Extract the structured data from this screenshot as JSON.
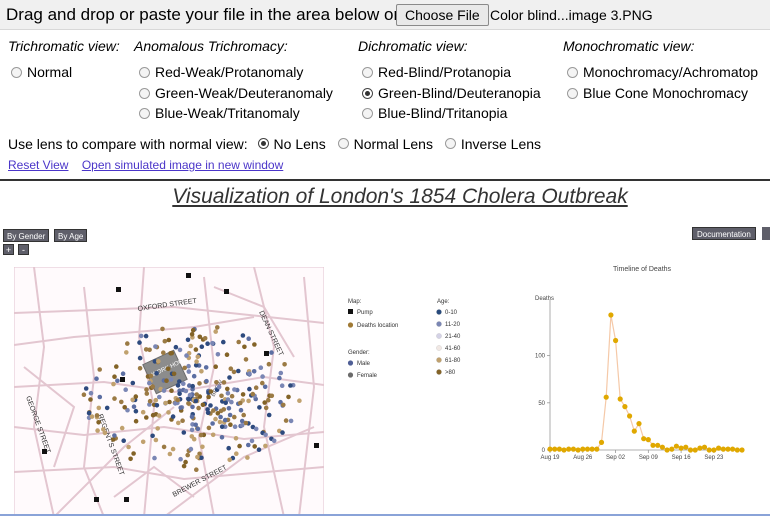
{
  "upload": {
    "prompt": "Drag and drop or paste your file in the area below or:",
    "button_label": "Choose File",
    "filename": "Color blind...image 3.PNG"
  },
  "groups": {
    "trichromatic": {
      "heading": "Trichromatic view:",
      "options": [
        "Normal"
      ]
    },
    "anomalous": {
      "heading": "Anomalous Trichromacy:",
      "options": [
        "Red-Weak/Protanomaly",
        "Green-Weak/Deuteranomaly",
        "Blue-Weak/Tritanomaly"
      ]
    },
    "dichromatic": {
      "heading": "Dichromatic view:",
      "options": [
        "Red-Blind/Protanopia",
        "Green-Blind/Deuteranopia",
        "Blue-Blind/Tritanopia"
      ]
    },
    "monochromatic": {
      "heading": "Monochromatic view:",
      "options": [
        "Monochromacy/Achromatop",
        "Blue Cone Monochromacy"
      ]
    },
    "selected": "Green-Blind/Deuteranopia"
  },
  "lens": {
    "label": "Use lens to compare with normal view:",
    "options": [
      "No Lens",
      "Normal Lens",
      "Inverse Lens"
    ],
    "selected": "No Lens"
  },
  "links": {
    "reset": "Reset View",
    "open_new": "Open simulated image in new window"
  },
  "visualization": {
    "title": "Visualization of London's 1854 Cholera Outbreak",
    "buttons": {
      "by_gender": "By Gender",
      "by_age": "By Age",
      "zoom_in": "+",
      "zoom_out": "-",
      "documentation": "Documentation"
    },
    "map": {
      "street_labels": [
        "OXFORD STREET",
        "DEAN STREET",
        "REGENT'S STREET",
        "GEORGE STREET",
        "BREWER STREET"
      ],
      "building_label": "WORK HOUSE",
      "building_label_2": "BREW",
      "colors": {
        "streets": "#e3c6d0",
        "pump": "#111111",
        "death_brown": "#9b7a44",
        "death_blue": "#2e4a7e"
      }
    },
    "legend": {
      "map_heading": "Map:",
      "map_items": [
        {
          "label": "Pump",
          "color": "#111111"
        },
        {
          "label": "Deaths location",
          "color": "#a07a35"
        }
      ],
      "gender_heading": "Gender:",
      "gender_items": [
        {
          "label": "Male",
          "color": "#4f5f96"
        },
        {
          "label": "Female",
          "color": "#6b6b6b"
        }
      ],
      "age_heading": "Age:",
      "age_items": [
        {
          "label": "0-10",
          "color": "#274a7c"
        },
        {
          "label": "11-20",
          "color": "#7a86b4"
        },
        {
          "label": "21-40",
          "color": "#d4d2e6"
        },
        {
          "label": "41-60",
          "color": "#f1e8e4"
        },
        {
          "label": "61-80",
          "color": "#c0a16e"
        },
        {
          "label": ">80",
          "color": "#836327"
        }
      ]
    }
  },
  "chart_data": {
    "type": "line",
    "title": "Timeline of Deaths",
    "ylabel": "Deaths",
    "xlabel": "",
    "ylim": [
      0,
      160
    ],
    "yticks": [
      0,
      50,
      100
    ],
    "x_ticks": [
      "Aug 19",
      "Aug 26",
      "Sep 02",
      "Sep 09",
      "Sep 16",
      "Sep 23"
    ],
    "x": [
      "Aug 19",
      "Aug 20",
      "Aug 21",
      "Aug 22",
      "Aug 23",
      "Aug 24",
      "Aug 25",
      "Aug 26",
      "Aug 27",
      "Aug 28",
      "Aug 29",
      "Aug 30",
      "Aug 31",
      "Sep 01",
      "Sep 02",
      "Sep 03",
      "Sep 04",
      "Sep 05",
      "Sep 06",
      "Sep 07",
      "Sep 08",
      "Sep 09",
      "Sep 10",
      "Sep 11",
      "Sep 12",
      "Sep 13",
      "Sep 14",
      "Sep 15",
      "Sep 16",
      "Sep 17",
      "Sep 18",
      "Sep 19",
      "Sep 20",
      "Sep 21",
      "Sep 22",
      "Sep 23",
      "Sep 24",
      "Sep 25",
      "Sep 26",
      "Sep 27",
      "Sep 28",
      "Sep 29"
    ],
    "series": [
      {
        "values": [
          1,
          1,
          1,
          0,
          1,
          1,
          0,
          1,
          1,
          1,
          1,
          8,
          56,
          143,
          116,
          54,
          46,
          36,
          20,
          28,
          12,
          11,
          5,
          5,
          3,
          0,
          1,
          4,
          2,
          3,
          0,
          0,
          2,
          3,
          0,
          0,
          2,
          1,
          1,
          1,
          0,
          0
        ]
      }
    ],
    "line_color": "#f5c9a8",
    "point_color": "#e0a800"
  }
}
